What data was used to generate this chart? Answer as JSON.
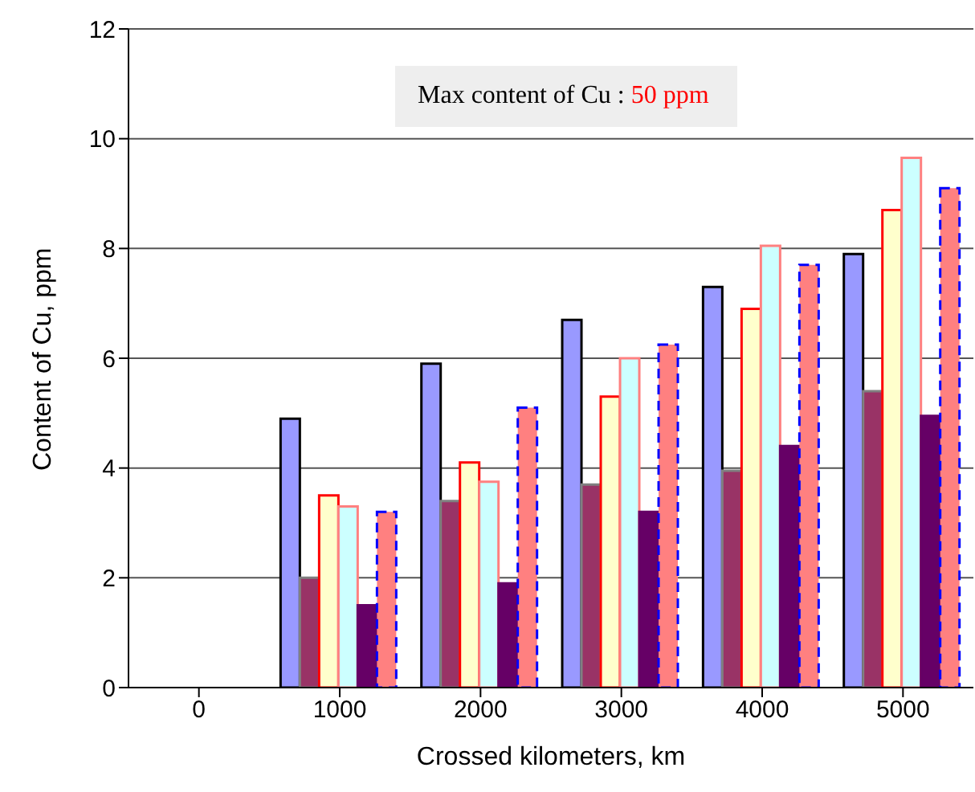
{
  "chart_data": {
    "type": "bar",
    "categories": [
      "0",
      "1000",
      "2000",
      "3000",
      "4000",
      "5000"
    ],
    "series": [
      {
        "color": "#9999ff",
        "values": [
          null,
          4.9,
          5.9,
          6.7,
          7.3,
          7.9
        ]
      },
      {
        "color": "#993366",
        "values": [
          null,
          2.0,
          3.4,
          3.7,
          3.95,
          5.4
        ]
      },
      {
        "color": "#ffffcc",
        "values": [
          null,
          3.5,
          4.1,
          5.3,
          6.9,
          8.7
        ]
      },
      {
        "color": "#ccffff",
        "values": [
          null,
          3.3,
          3.75,
          6.0,
          8.05,
          9.65
        ]
      },
      {
        "color": "#660066",
        "values": [
          null,
          1.5,
          1.9,
          3.2,
          4.4,
          4.95
        ]
      },
      {
        "color": "#ff8080",
        "values": [
          null,
          3.2,
          5.1,
          6.25,
          7.7,
          9.1
        ]
      }
    ],
    "xlabel": "Crossed kilometers, km",
    "ylabel": "Content of Cu, ppm",
    "ylim": [
      0,
      12
    ],
    "yticks": [
      0,
      2,
      4,
      6,
      8,
      10,
      12
    ],
    "grid": "y",
    "annotations": [
      "Max content of Cu :",
      "50 ppm"
    ]
  }
}
